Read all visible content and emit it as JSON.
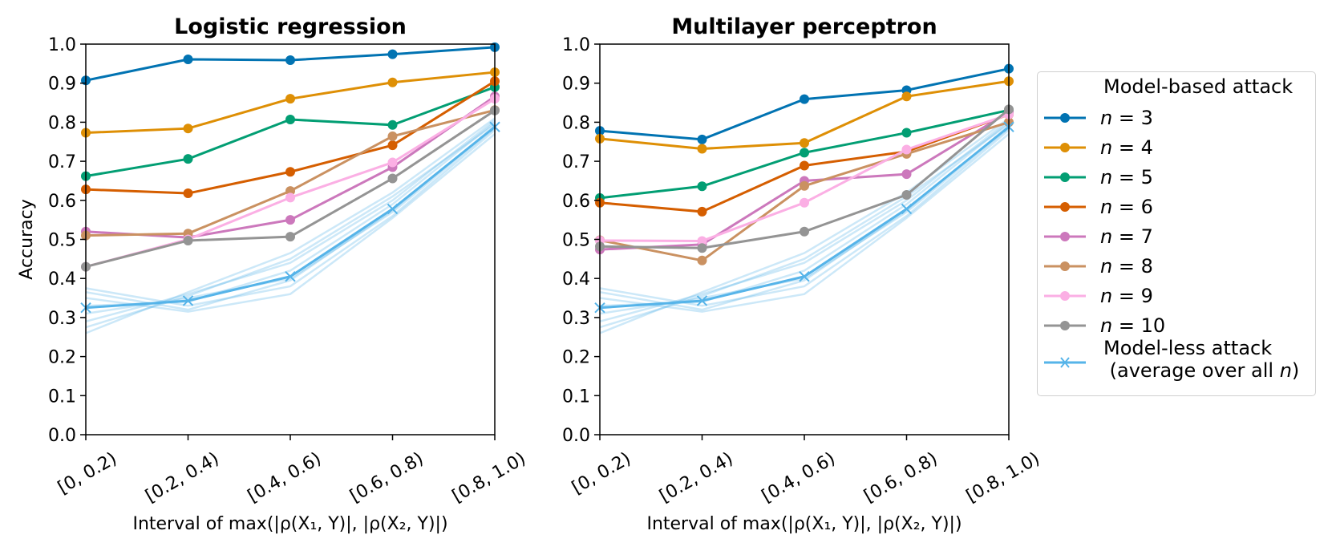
{
  "chart_data": [
    {
      "type": "line",
      "title": "Logistic regression",
      "xlabel": "Interval of max(|ρ(X₁, Y)|, |ρ(X₂, Y)|)",
      "ylabel": "Accuracy",
      "categories": [
        "[0, 0.2)",
        "[0.2, 0.4)",
        "[0.4, 0.6)",
        "[0.6, 0.8)",
        "[0.8, 1.0)"
      ],
      "ylim": [
        0.0,
        1.0
      ],
      "yticks": [
        "0.0",
        "0.1",
        "0.2",
        "0.3",
        "0.4",
        "0.5",
        "0.6",
        "0.7",
        "0.8",
        "0.9",
        "1.0"
      ],
      "series": [
        {
          "name": "n = 3",
          "color": "#0173b2",
          "values": [
            0.907,
            0.961,
            0.959,
            0.974,
            0.992
          ]
        },
        {
          "name": "n = 4",
          "color": "#de8f05",
          "values": [
            0.773,
            0.784,
            0.86,
            0.902,
            0.928
          ]
        },
        {
          "name": "n = 5",
          "color": "#029e73",
          "values": [
            0.662,
            0.706,
            0.807,
            0.793,
            0.89
          ]
        },
        {
          "name": "n = 6",
          "color": "#d55e00",
          "values": [
            0.628,
            0.618,
            0.673,
            0.741,
            0.905
          ]
        },
        {
          "name": "n = 7",
          "color": "#cc78bc",
          "values": [
            0.52,
            0.505,
            0.55,
            0.685,
            0.866
          ]
        },
        {
          "name": "n = 8",
          "color": "#ca9161",
          "values": [
            0.51,
            0.515,
            0.624,
            0.764,
            0.831
          ]
        },
        {
          "name": "n = 9",
          "color": "#fbafe4",
          "values": [
            0.43,
            0.5,
            0.607,
            0.697,
            0.86
          ]
        },
        {
          "name": "n = 10",
          "color": "#949494",
          "values": [
            0.43,
            0.497,
            0.507,
            0.656,
            0.83
          ]
        }
      ],
      "modelless_average": {
        "color": "#56b4e9",
        "values": [
          0.325,
          0.343,
          0.405,
          0.578,
          0.788
        ]
      },
      "modelless_individual": [
        [
          0.375,
          0.33,
          0.38,
          0.56,
          0.78
        ],
        [
          0.365,
          0.32,
          0.395,
          0.575,
          0.79
        ],
        [
          0.35,
          0.315,
          0.36,
          0.555,
          0.77
        ],
        [
          0.33,
          0.34,
          0.42,
          0.59,
          0.8
        ],
        [
          0.31,
          0.35,
          0.4,
          0.57,
          0.785
        ],
        [
          0.29,
          0.36,
          0.44,
          0.6,
          0.805
        ],
        [
          0.275,
          0.355,
          0.45,
          0.61,
          0.795
        ],
        [
          0.26,
          0.365,
          0.465,
          0.62,
          0.81
        ]
      ]
    },
    {
      "type": "line",
      "title": "Multilayer perceptron",
      "xlabel": "Interval of max(|ρ(X₁, Y)|, |ρ(X₂, Y)|)",
      "ylabel": "",
      "categories": [
        "[0, 0.2)",
        "[0.2, 0.4)",
        "[0.4, 0.6)",
        "[0.6, 0.8)",
        "[0.8, 1.0)"
      ],
      "ylim": [
        0.0,
        1.0
      ],
      "yticks": [
        "0.0",
        "0.1",
        "0.2",
        "0.3",
        "0.4",
        "0.5",
        "0.6",
        "0.7",
        "0.8",
        "0.9",
        "1.0"
      ],
      "series": [
        {
          "name": "n = 3",
          "color": "#0173b2",
          "values": [
            0.778,
            0.756,
            0.859,
            0.882,
            0.937
          ]
        },
        {
          "name": "n = 4",
          "color": "#de8f05",
          "values": [
            0.758,
            0.732,
            0.747,
            0.866,
            0.905
          ]
        },
        {
          "name": "n = 5",
          "color": "#029e73",
          "values": [
            0.606,
            0.636,
            0.722,
            0.773,
            0.831
          ]
        },
        {
          "name": "n = 6",
          "color": "#d55e00",
          "values": [
            0.594,
            0.571,
            0.689,
            0.725,
            0.82
          ]
        },
        {
          "name": "n = 7",
          "color": "#cc78bc",
          "values": [
            0.474,
            0.487,
            0.65,
            0.667,
            0.826
          ]
        },
        {
          "name": "n = 8",
          "color": "#ca9161",
          "values": [
            0.498,
            0.446,
            0.637,
            0.719,
            0.8
          ]
        },
        {
          "name": "n = 9",
          "color": "#fbafe4",
          "values": [
            0.497,
            0.496,
            0.594,
            0.73,
            0.82
          ]
        },
        {
          "name": "n = 10",
          "color": "#949494",
          "values": [
            0.482,
            0.478,
            0.52,
            0.614,
            0.833
          ]
        }
      ],
      "modelless_average": {
        "color": "#56b4e9",
        "values": [
          0.325,
          0.343,
          0.405,
          0.578,
          0.788
        ]
      },
      "modelless_individual": [
        [
          0.375,
          0.33,
          0.38,
          0.56,
          0.78
        ],
        [
          0.365,
          0.32,
          0.395,
          0.575,
          0.79
        ],
        [
          0.35,
          0.315,
          0.36,
          0.555,
          0.77
        ],
        [
          0.33,
          0.34,
          0.42,
          0.59,
          0.8
        ],
        [
          0.31,
          0.35,
          0.4,
          0.57,
          0.785
        ],
        [
          0.29,
          0.36,
          0.44,
          0.6,
          0.805
        ],
        [
          0.275,
          0.355,
          0.45,
          0.61,
          0.795
        ],
        [
          0.26,
          0.365,
          0.465,
          0.62,
          0.81
        ]
      ]
    }
  ],
  "legend": {
    "title": "Model-based attack",
    "entries": [
      {
        "prefix": "n",
        "label": " = 3",
        "color": "#0173b2"
      },
      {
        "prefix": "n",
        "label": " = 4",
        "color": "#de8f05"
      },
      {
        "prefix": "n",
        "label": " = 5",
        "color": "#029e73"
      },
      {
        "prefix": "n",
        "label": " = 6",
        "color": "#d55e00"
      },
      {
        "prefix": "n",
        "label": " = 7",
        "color": "#cc78bc"
      },
      {
        "prefix": "n",
        "label": " = 8",
        "color": "#ca9161"
      },
      {
        "prefix": "n",
        "label": " = 9",
        "color": "#fbafe4"
      },
      {
        "prefix": "n",
        "label": " = 10",
        "color": "#949494"
      }
    ],
    "modelless_line1": "Model-less attack",
    "modelless_line2_prefix": " (average over all ",
    "modelless_line2_var": "n",
    "modelless_line2_suffix": ")",
    "modelless_color": "#56b4e9",
    "placement": "right"
  }
}
